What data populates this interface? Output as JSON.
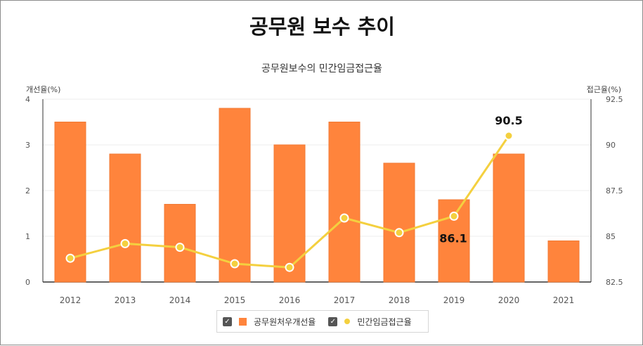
{
  "title": "공무원 보수 추이",
  "chart_data": {
    "type": "bar",
    "subtitle": "공무원보수의 민간임금접근율",
    "left_axis_label": "개선율(%)",
    "right_axis_label": "접근율(%)",
    "categories": [
      "2012",
      "2013",
      "2014",
      "2015",
      "2016",
      "2017",
      "2018",
      "2019",
      "2020",
      "2021"
    ],
    "left_ylim": [
      0,
      4
    ],
    "left_ticks": [
      "0",
      "1",
      "2",
      "3",
      "4"
    ],
    "right_ylim": [
      82.5,
      92.5
    ],
    "right_ticks": [
      "82.5",
      "85",
      "87.5",
      "90",
      "92.5"
    ],
    "grid": true,
    "legend_position": "bottom",
    "series": [
      {
        "name": "공무원처우개선율",
        "type": "bar",
        "axis": "left",
        "color": "#ff843c",
        "values": [
          3.5,
          2.8,
          1.7,
          3.8,
          3.0,
          3.5,
          2.6,
          1.8,
          2.8,
          0.9
        ]
      },
      {
        "name": "민간임금접근율",
        "type": "line",
        "axis": "right",
        "color": "#f4d03f",
        "values": [
          83.8,
          84.6,
          84.4,
          83.5,
          83.3,
          86.0,
          85.2,
          86.1,
          90.5,
          null
        ]
      }
    ],
    "annotations": [
      {
        "category": "2019",
        "series": "민간임금접근율",
        "label": "86.1"
      },
      {
        "category": "2020",
        "series": "민간임금접근율",
        "label": "90.5"
      }
    ]
  }
}
